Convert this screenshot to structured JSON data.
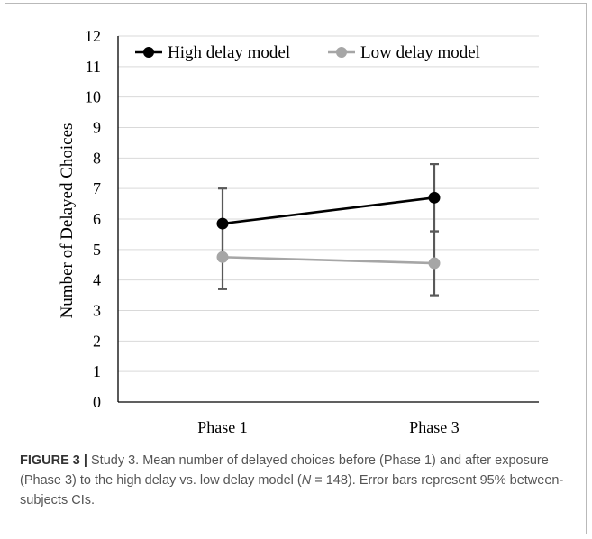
{
  "chart_data": {
    "type": "line",
    "categories": [
      "Phase 1",
      "Phase 3"
    ],
    "ylabel": "Number of Delayed Choices",
    "ylim": [
      0,
      12
    ],
    "yticks": [
      "0",
      "1",
      "2",
      "3",
      "4",
      "5",
      "6",
      "7",
      "8",
      "9",
      "10",
      "11",
      "12"
    ],
    "grid": true,
    "legend_position": "top",
    "series": [
      {
        "name": "High delay model",
        "color": "#000000",
        "values": [
          5.85,
          6.7
        ],
        "ci_low": [
          4.7,
          5.6
        ],
        "ci_high": [
          7.0,
          7.8
        ]
      },
      {
        "name": "Low delay model",
        "color": "#a6a6a6",
        "values": [
          4.75,
          4.55
        ],
        "ci_low": [
          3.7,
          3.5
        ],
        "ci_high": [
          5.8,
          5.6
        ]
      }
    ]
  },
  "caption": {
    "figure_label": "FIGURE 3 |",
    "text_part1": " Study 3. Mean number of delayed choices before (Phase 1) and after exposure (Phase 3) to the high delay vs. low delay model (",
    "n_symbol": "N",
    "text_part2": " = 148). Error bars represent 95% between-subjects CIs."
  }
}
